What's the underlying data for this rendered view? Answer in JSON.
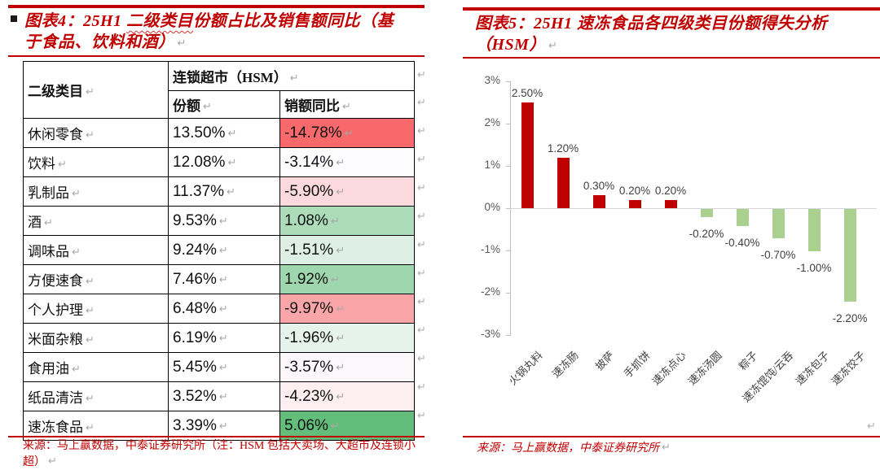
{
  "pilcrow": "↵",
  "accent_red": "#C00000",
  "left_figure": {
    "title_prefix": "图表4：25H1 ",
    "title_wavy": "二级类目",
    "title_rest": "份额占比及销售额同比（基",
    "title_line2": "于食品、饮料和酒）",
    "source_text": "来源：马上赢数据，中泰证券研究所（注：HSM 包括大卖场、大超市及连锁小超）",
    "table": {
      "col1_header": "二级类目",
      "span_header": "连锁超市（HSM）",
      "sub_header_share": "份额",
      "sub_header_yoy": "销额同比",
      "rows": [
        {
          "name": "休闲零食",
          "share": "13.50%",
          "yoy": "-14.78%",
          "fill": "#F8696B"
        },
        {
          "name": "饮料",
          "share": "12.08%",
          "yoy": "-3.14%",
          "fill": "#FCFBFE"
        },
        {
          "name": "乳制品",
          "share": "11.37%",
          "yoy": "-5.90%",
          "fill": "#FBD9DC"
        },
        {
          "name": "酒",
          "share": "9.53%",
          "yoy": "1.08%",
          "fill": "#ADDCBB"
        },
        {
          "name": "调味品",
          "share": "9.24%",
          "yoy": "-1.51%",
          "fill": "#DEF0E5"
        },
        {
          "name": "方便速食",
          "share": "7.46%",
          "yoy": "1.92%",
          "fill": "#9ED6AD"
        },
        {
          "name": "个人护理",
          "share": "6.48%",
          "yoy": "-9.97%",
          "fill": "#FAA6A8"
        },
        {
          "name": "米面杂粮",
          "share": "6.19%",
          "yoy": "-1.96%",
          "fill": "#E6F3EC"
        },
        {
          "name": "食用油",
          "share": "5.45%",
          "yoy": "-3.57%",
          "fill": "#FCF7FA"
        },
        {
          "name": "纸品清洁",
          "share": "3.52%",
          "yoy": "-4.23%",
          "fill": "#FCEEF1"
        },
        {
          "name": "速冻食品",
          "share": "3.39%",
          "yoy": "5.06%",
          "fill": "#63BE7B"
        }
      ]
    }
  },
  "right_figure": {
    "title_line1": "图表5：25H1 速冻食品各四级类目份额得失分析",
    "title_line2": "（HSM）",
    "source_text": "来源：马上赢数据，中泰证券研究所"
  },
  "chart_data": {
    "type": "bar",
    "title": "25H1 速冻食品各四级类目份额得失分析（HSM）",
    "categories": [
      "火锅丸料",
      "速冻肠",
      "披萨",
      "手抓饼",
      "速冻点心",
      "速冻汤圆",
      "粽子",
      "速冻馄饨/云吞",
      "速冻包子",
      "速冻饺子"
    ],
    "values": [
      2.5,
      1.2,
      0.3,
      0.2,
      0.2,
      -0.2,
      -0.4,
      -0.7,
      -1.0,
      -2.2
    ],
    "data_labels": [
      "2.50%",
      "1.20%",
      "0.30%",
      "0.20%",
      "0.20%",
      "-0.20%",
      "-0.40%",
      "-0.70%",
      "-1.00%",
      "-2.20%"
    ],
    "ytick_labels": [
      "3%",
      "2%",
      "1%",
      "0%",
      "-1%",
      "-2%",
      "-3%"
    ],
    "ytick_values": [
      3,
      2,
      1,
      0,
      -1,
      -2,
      -3
    ],
    "ylim": [
      -3,
      3
    ],
    "grid": false,
    "legend": "none",
    "positive_color": "#C00000",
    "negative_color": "#A9D08E",
    "axis_color": "#BFBFBF",
    "zero_line_color": "#D6D6D6"
  }
}
